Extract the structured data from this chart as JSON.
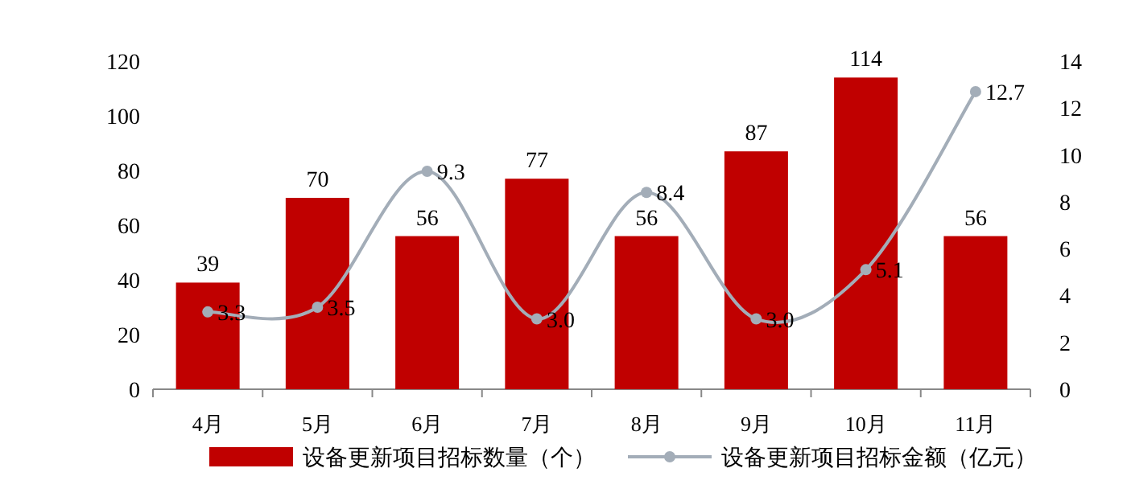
{
  "chart_data": {
    "type": "bar",
    "categories": [
      "4月",
      "5月",
      "6月",
      "7月",
      "8月",
      "9月",
      "10月",
      "11月"
    ],
    "series": [
      {
        "name": "设备更新项目招标数量（个）",
        "color": "#c00000",
        "values": [
          39,
          70,
          56,
          77,
          56,
          87,
          114,
          56
        ],
        "value_labels": [
          "39",
          "70",
          "56",
          "77",
          "56",
          "87",
          "114",
          "56"
        ]
      },
      {
        "name": "设备更新项目招标金额（亿元）",
        "type": "line",
        "axis": "y2",
        "marker": "circle",
        "color": "#a3adb8",
        "values": [
          3.3,
          3.5,
          9.3,
          3.0,
          8.4,
          3.0,
          5.1,
          12.7
        ],
        "value_labels": [
          "3.3",
          "3.5",
          "9.3",
          "3.0",
          "8.4",
          "3.0",
          "5.1",
          "12.7"
        ]
      }
    ],
    "ylim": [
      0,
      120
    ],
    "yticks": [
      0,
      20,
      40,
      60,
      80,
      100,
      120
    ],
    "y2lim": [
      0,
      14
    ],
    "y2ticks": [
      0,
      2,
      4,
      6,
      8,
      10,
      12,
      14
    ],
    "grid": false,
    "legend": "bottom"
  }
}
